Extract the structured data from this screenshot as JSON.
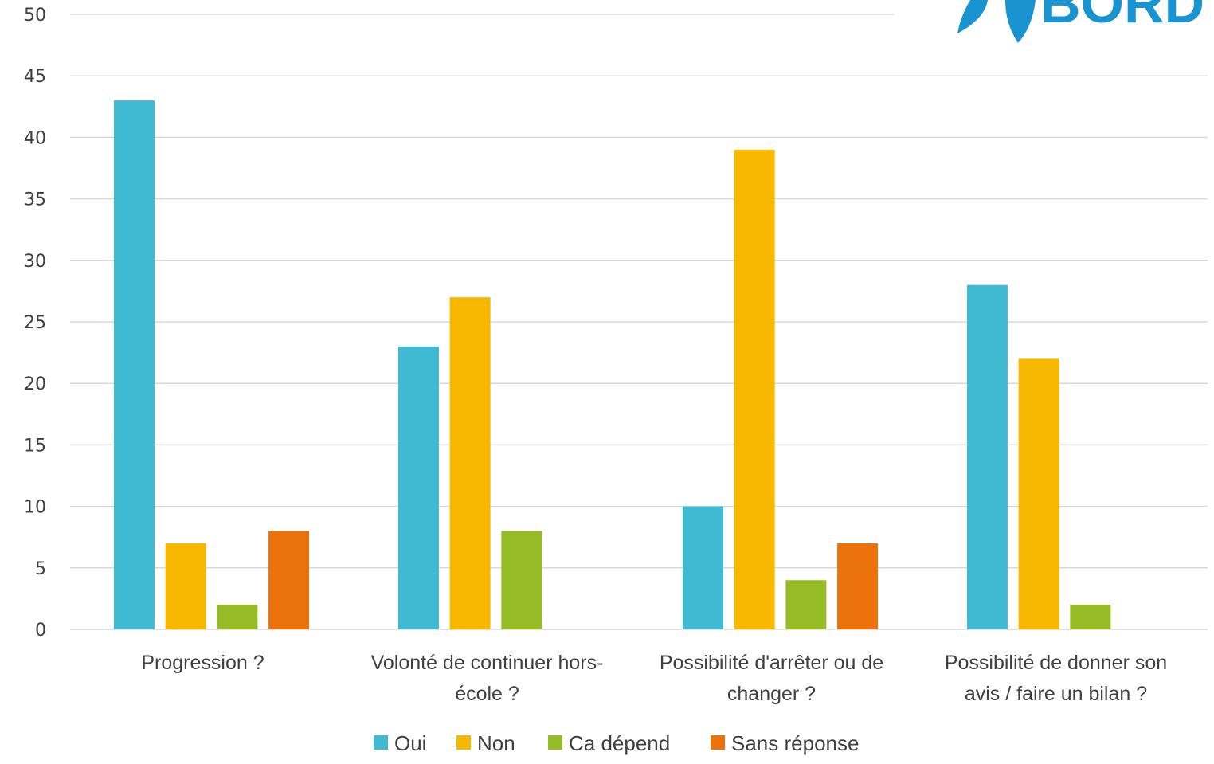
{
  "logo": {
    "text": "BORD"
  },
  "chart_data": {
    "type": "bar",
    "title": "",
    "xlabel": "",
    "ylabel": "",
    "ylim": [
      0,
      50
    ],
    "yticks": [
      0,
      5,
      10,
      15,
      20,
      25,
      30,
      35,
      40,
      45,
      50
    ],
    "grid": true,
    "legend_position": "bottom",
    "categories": [
      [
        "Progression ?"
      ],
      [
        "Volonté de continuer hors-",
        "école ?"
      ],
      [
        "Possibilité d'arrêter ou de",
        "changer ?"
      ],
      [
        "Possibilité de donner son",
        "avis / faire un bilan ?"
      ]
    ],
    "series": [
      {
        "name": "Oui",
        "color": "#3fbad2",
        "values": [
          43,
          23,
          10,
          28
        ]
      },
      {
        "name": "Non",
        "color": "#f8b800",
        "values": [
          7,
          27,
          39,
          22
        ]
      },
      {
        "name": "Ca dépend",
        "color": "#95bc25",
        "values": [
          2,
          8,
          4,
          2
        ]
      },
      {
        "name": "Sans réponse",
        "color": "#ec720b",
        "values": [
          8,
          null,
          7,
          null
        ]
      }
    ]
  }
}
